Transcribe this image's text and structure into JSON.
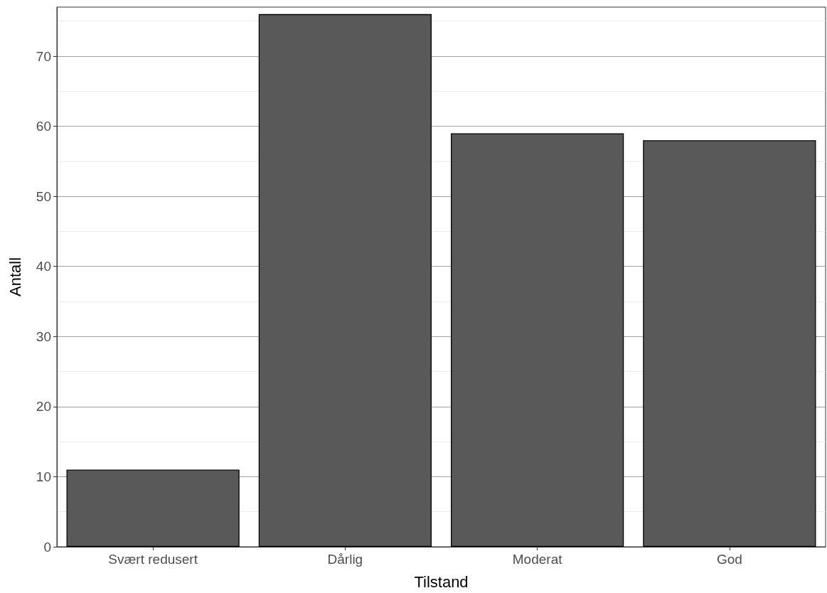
{
  "chart_data": {
    "type": "bar",
    "xlabel": "Tilstand",
    "ylabel": "Antall",
    "categories": [
      "Svært redusert",
      "Dårlig",
      "Moderat",
      "God"
    ],
    "values": [
      11,
      76,
      59,
      58
    ],
    "color": "#595959",
    "ylim": [
      0,
      77
    ],
    "yticks": [
      0,
      10,
      20,
      30,
      40,
      50,
      60,
      70
    ],
    "grid": "y"
  }
}
